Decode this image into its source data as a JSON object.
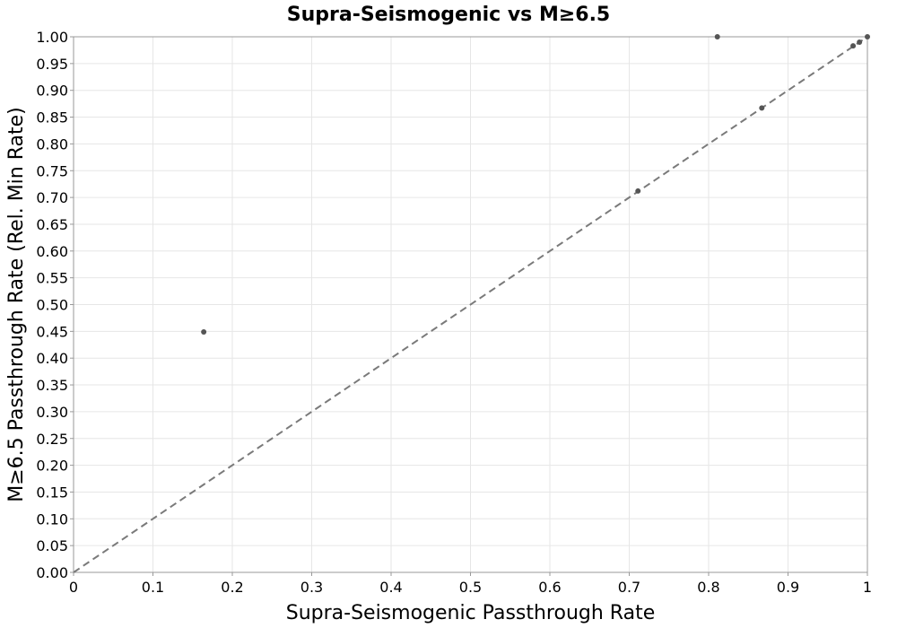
{
  "chart_data": {
    "type": "scatter",
    "title": "Supra-Seismogenic vs M≥6.5",
    "xlabel": "Supra-Seismogenic Passthrough Rate",
    "ylabel": "M≥6.5 Passthrough Rate (Rel. Min Rate)",
    "xlim": [
      0,
      1
    ],
    "ylim": [
      0,
      1
    ],
    "x_ticks": [
      "0",
      "0.1",
      "0.2",
      "0.3",
      "0.4",
      "0.5",
      "0.6",
      "0.7",
      "0.8",
      "0.9",
      "1"
    ],
    "y_ticks": [
      "0.00",
      "0.05",
      "0.10",
      "0.15",
      "0.20",
      "0.25",
      "0.30",
      "0.35",
      "0.40",
      "0.45",
      "0.50",
      "0.55",
      "0.60",
      "0.65",
      "0.70",
      "0.75",
      "0.80",
      "0.85",
      "0.90",
      "0.95",
      "1.00"
    ],
    "grid": true,
    "reference_line": {
      "style": "dashed",
      "from": [
        0,
        0
      ],
      "to": [
        1,
        1
      ],
      "color": "#7a7a7a"
    },
    "point_color": "#555555",
    "series": [
      {
        "x": [
          0.164,
          0.711,
          0.811,
          0.867,
          0.982,
          0.99,
          1.0
        ],
        "y": [
          0.449,
          0.712,
          1.0,
          0.867,
          0.983,
          0.99,
          1.0
        ]
      }
    ]
  }
}
